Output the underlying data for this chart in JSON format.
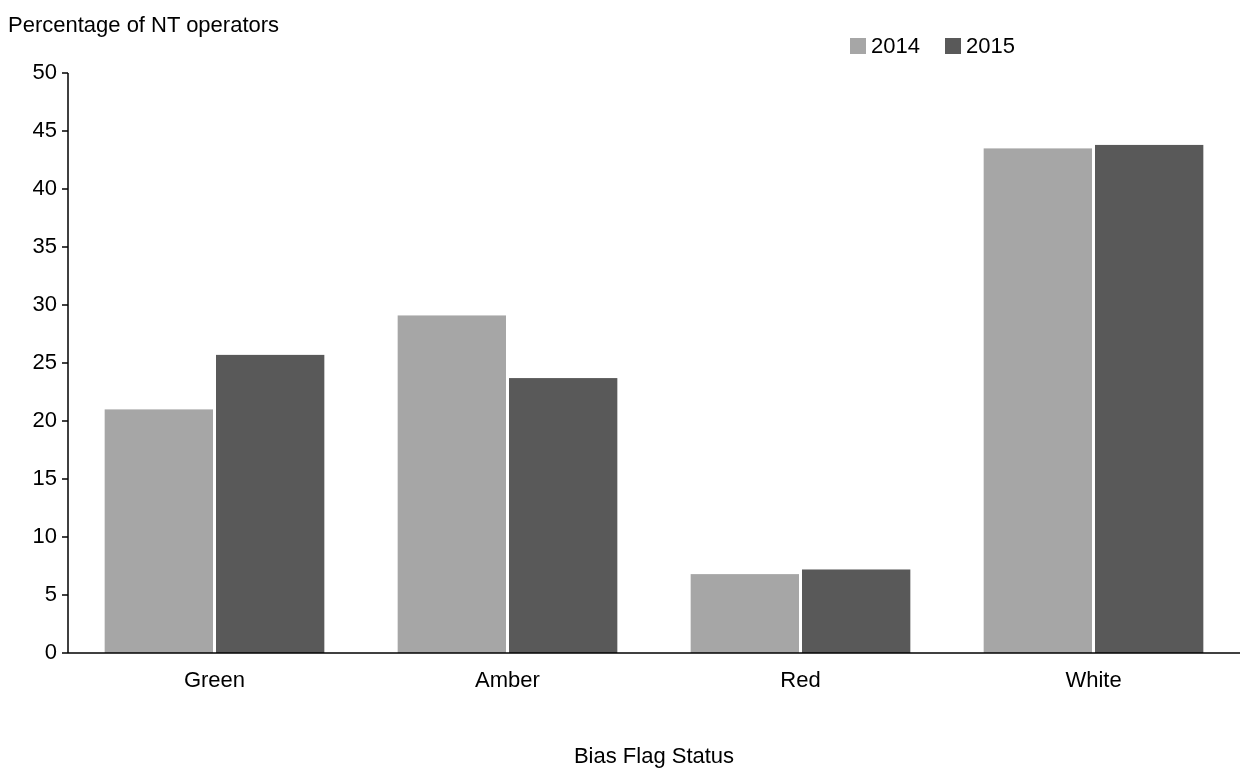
{
  "chart_data": {
    "type": "bar",
    "ylabel": "Percentage of NT operators",
    "xlabel": "Bias Flag Status",
    "categories": [
      "Green",
      "Amber",
      "Red",
      "White"
    ],
    "series": [
      {
        "name": "2014",
        "color": "#a6a6a6",
        "values": [
          21.0,
          29.1,
          6.8,
          43.5
        ]
      },
      {
        "name": "2015",
        "color": "#595959",
        "values": [
          25.7,
          23.7,
          7.2,
          43.8
        ]
      }
    ],
    "ylim": [
      0,
      50
    ],
    "yticks": [
      0,
      5,
      10,
      15,
      20,
      25,
      30,
      35,
      40,
      45,
      50
    ],
    "grid": false,
    "legend": "top right"
  }
}
